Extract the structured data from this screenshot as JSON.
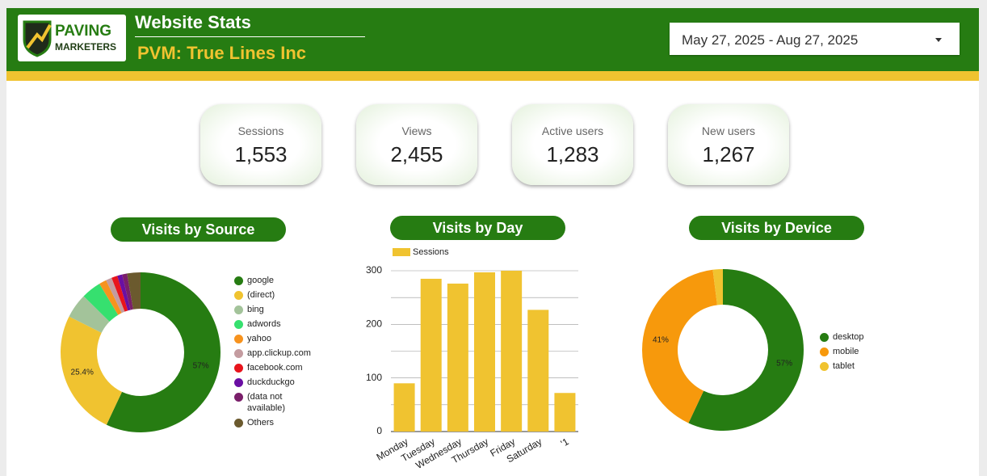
{
  "header": {
    "logo_line1": "PAVING",
    "logo_line2": "MARKETERS",
    "title": "Website Stats",
    "subtitle": "PVM: True Lines Inc",
    "date_range": "May 27, 2025 - Aug 27, 2025"
  },
  "kpis": [
    {
      "label": "Sessions",
      "value": "1,553"
    },
    {
      "label": "Views",
      "value": "2,455"
    },
    {
      "label": "Active users",
      "value": "1,283"
    },
    {
      "label": "New users",
      "value": "1,267"
    }
  ],
  "chart_data": [
    {
      "type": "pie",
      "title": "Visits by Source",
      "categories": [
        "google",
        "(direct)",
        "bing",
        "adwords",
        "yahoo",
        "app.clickup.com",
        "facebook.com",
        "duckduckgo",
        "(data not available)",
        "Others"
      ],
      "values": [
        57,
        25.4,
        5,
        4,
        1.5,
        1.2,
        1.2,
        1,
        1,
        2.7
      ],
      "value_labels": [
        "57%",
        "25.4%",
        null,
        null,
        null,
        null,
        null,
        null,
        null,
        null
      ],
      "colors": [
        "#267c12",
        "#f0c330",
        "#a3c39a",
        "#36e06f",
        "#f7931e",
        "#c49ca0",
        "#e8141c",
        "#6a0fa3",
        "#7a1f6a",
        "#6b5a2e"
      ]
    },
    {
      "type": "bar",
      "title": "Visits by Day",
      "categories": [
        "Monday",
        "Tuesday",
        "Wednesday",
        "Thursday",
        "Friday",
        "Saturday",
        "'1"
      ],
      "series": [
        {
          "name": "Sessions",
          "color": "#f0c330",
          "values": [
            90,
            285,
            276,
            297,
            300,
            227,
            72
          ]
        }
      ],
      "ylim": [
        0,
        300
      ],
      "yticks": [
        0,
        100,
        200,
        300
      ],
      "minor_yticks": [
        50,
        150,
        250
      ],
      "grid": true
    },
    {
      "type": "pie",
      "title": "Visits by Device",
      "categories": [
        "desktop",
        "mobile",
        "tablet"
      ],
      "values": [
        57,
        41,
        2
      ],
      "value_labels": [
        "57%",
        "41%",
        null
      ],
      "colors": [
        "#267c12",
        "#f7990c",
        "#f0c330"
      ]
    }
  ]
}
